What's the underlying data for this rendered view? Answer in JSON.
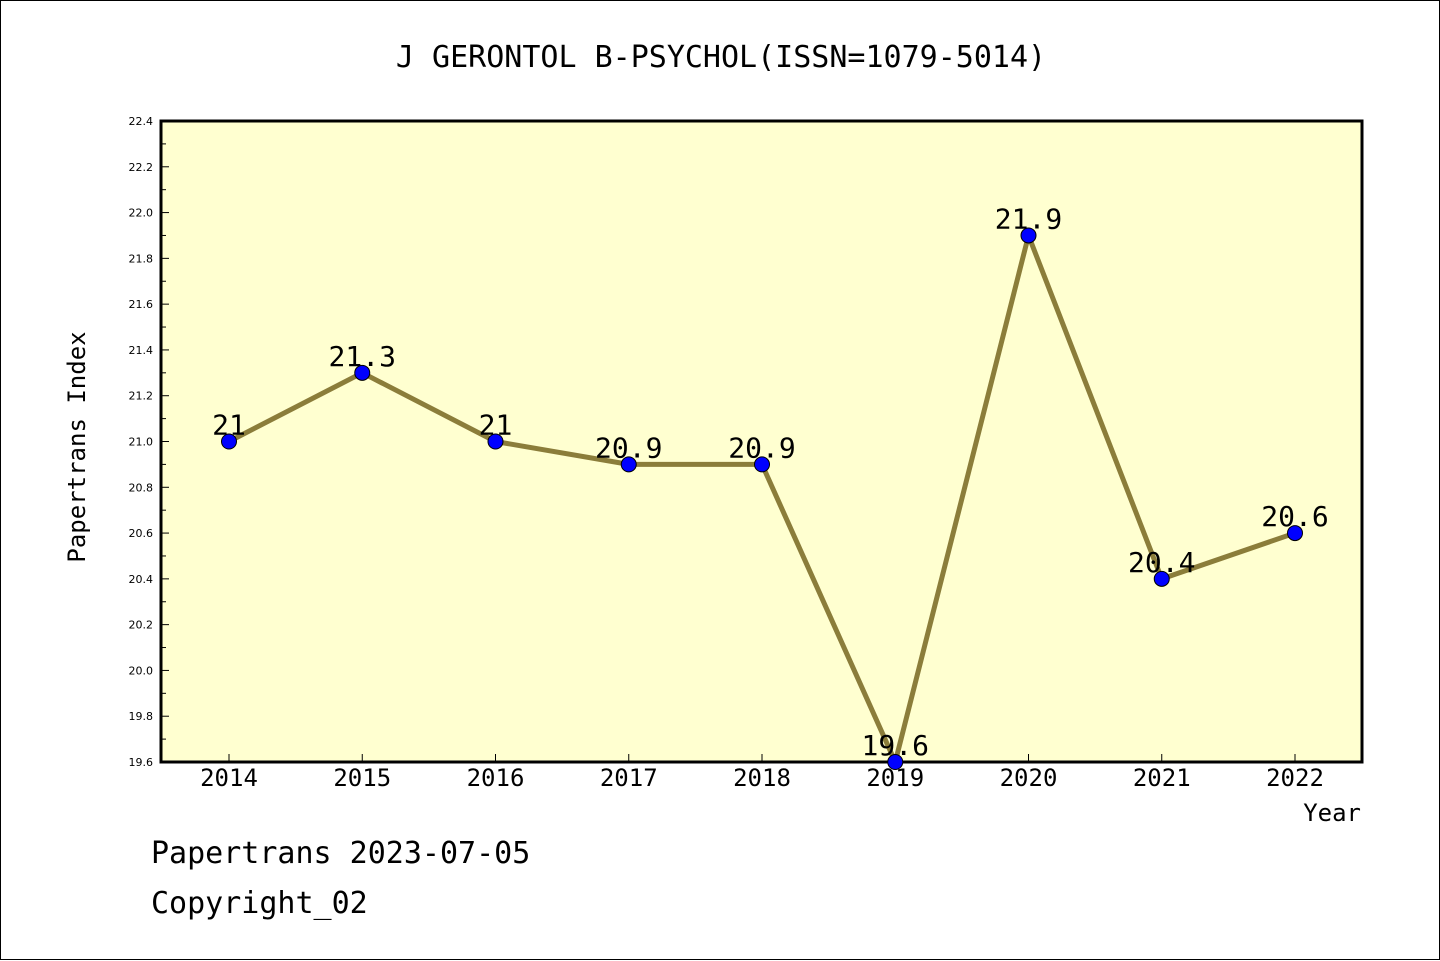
{
  "chart_data": {
    "type": "line",
    "title": "J GERONTOL B-PSYCHOL(ISSN=1079-5014)",
    "xlabel": "Year",
    "ylabel": "Papertrans Index",
    "categories": [
      "2014",
      "2015",
      "2016",
      "2017",
      "2018",
      "2019",
      "2020",
      "2021",
      "2022"
    ],
    "values": [
      21,
      21.3,
      21,
      20.9,
      20.9,
      19.6,
      21.9,
      20.4,
      20.6
    ],
    "value_labels": [
      "21",
      "21.3",
      "21",
      "20.9",
      "20.9",
      "19.6",
      "21.9",
      "20.4",
      "20.6"
    ],
    "ylim": [
      19.6,
      22.4
    ],
    "yticks": [
      "19.6",
      "19.8",
      "20.0",
      "20.2",
      "20.4",
      "20.6",
      "20.8",
      "21.0",
      "21.2",
      "21.4",
      "21.6",
      "21.8",
      "22.0",
      "22.2",
      "22.4"
    ],
    "grid": false,
    "colors": {
      "plot_background": "#ffffd0",
      "line": "#8b7d3a",
      "marker": "#0000ff",
      "axis": "#000000"
    }
  },
  "footer": {
    "line1": "Papertrans 2023-07-05",
    "line2": "Copyright_02"
  }
}
